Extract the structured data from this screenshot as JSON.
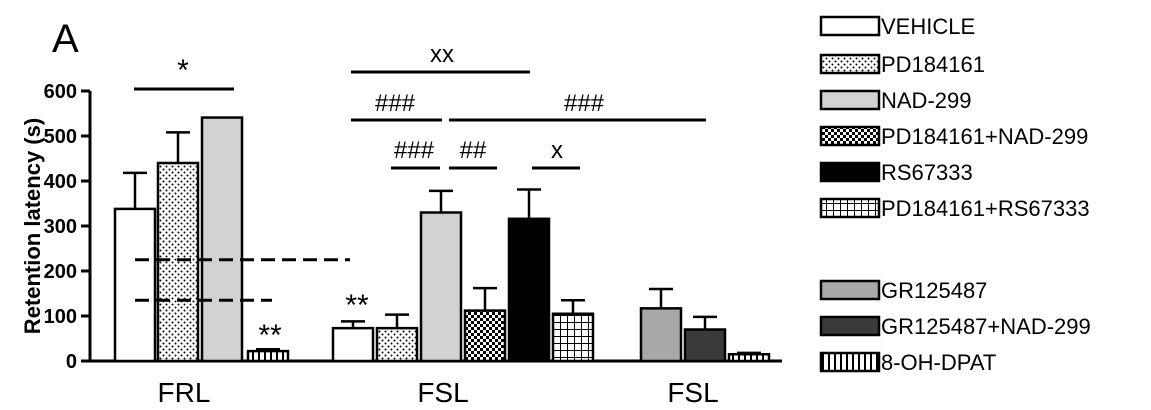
{
  "chart_data": {
    "type": "bar",
    "panel_label": "A",
    "ylabel": "Retention latency (s)",
    "ylim": [
      0,
      600
    ],
    "yticks": [
      0,
      100,
      200,
      300,
      400,
      500,
      600
    ],
    "groups": [
      {
        "label": "FRL"
      },
      {
        "label": "FSL"
      },
      {
        "label": "FSL"
      }
    ],
    "bars": [
      {
        "series": "VEHICLE",
        "group": 0,
        "value": 338,
        "error": 80
      },
      {
        "series": "PD184161",
        "group": 0,
        "value": 440,
        "error": 68
      },
      {
        "series": "NAD-299",
        "group": 0,
        "value": 541,
        "error": 0
      },
      {
        "series": "8-OH-DPAT",
        "group": 0,
        "value": 22,
        "error": 4
      },
      {
        "series": "VEHICLE",
        "group": 1,
        "value": 73,
        "error": 15
      },
      {
        "series": "PD184161",
        "group": 1,
        "value": 73,
        "error": 30
      },
      {
        "series": "NAD-299",
        "group": 1,
        "value": 330,
        "error": 48
      },
      {
        "series": "PD184161+NAD-299",
        "group": 1,
        "value": 112,
        "error": 50
      },
      {
        "series": "RS67333",
        "group": 1,
        "value": 316,
        "error": 65
      },
      {
        "series": "PD184161+RS67333",
        "group": 1,
        "value": 105,
        "error": 30
      },
      {
        "series": "GR125487",
        "group": 2,
        "value": 117,
        "error": 43
      },
      {
        "series": "GR125487+NAD-299",
        "group": 2,
        "value": 70,
        "error": 28
      },
      {
        "series": "8-OH-DPAT",
        "group": 2,
        "value": 15,
        "error": 3
      }
    ],
    "legend": [
      {
        "name": "VEHICLE",
        "pattern": "white"
      },
      {
        "name": "PD184161",
        "pattern": "dots"
      },
      {
        "name": "NAD-299",
        "pattern": "lightgray"
      },
      {
        "name": "PD184161+NAD-299",
        "pattern": "checker"
      },
      {
        "name": "RS67333",
        "pattern": "black"
      },
      {
        "name": "PD184161+RS67333",
        "pattern": "grid"
      },
      {
        "name": "GR125487",
        "pattern": "gray"
      },
      {
        "name": "GR125487+NAD-299",
        "pattern": "darkgray"
      },
      {
        "name": "8-OH-DPAT",
        "pattern": "vlines"
      }
    ],
    "reference_lines": [
      225,
      135
    ],
    "annotations": [
      {
        "text": "*"
      },
      {
        "text": "**"
      },
      {
        "text": "**"
      },
      {
        "text": "xx"
      },
      {
        "text": "###"
      },
      {
        "text": "###"
      },
      {
        "text": "###"
      },
      {
        "text": "##"
      },
      {
        "text": "x"
      }
    ]
  }
}
